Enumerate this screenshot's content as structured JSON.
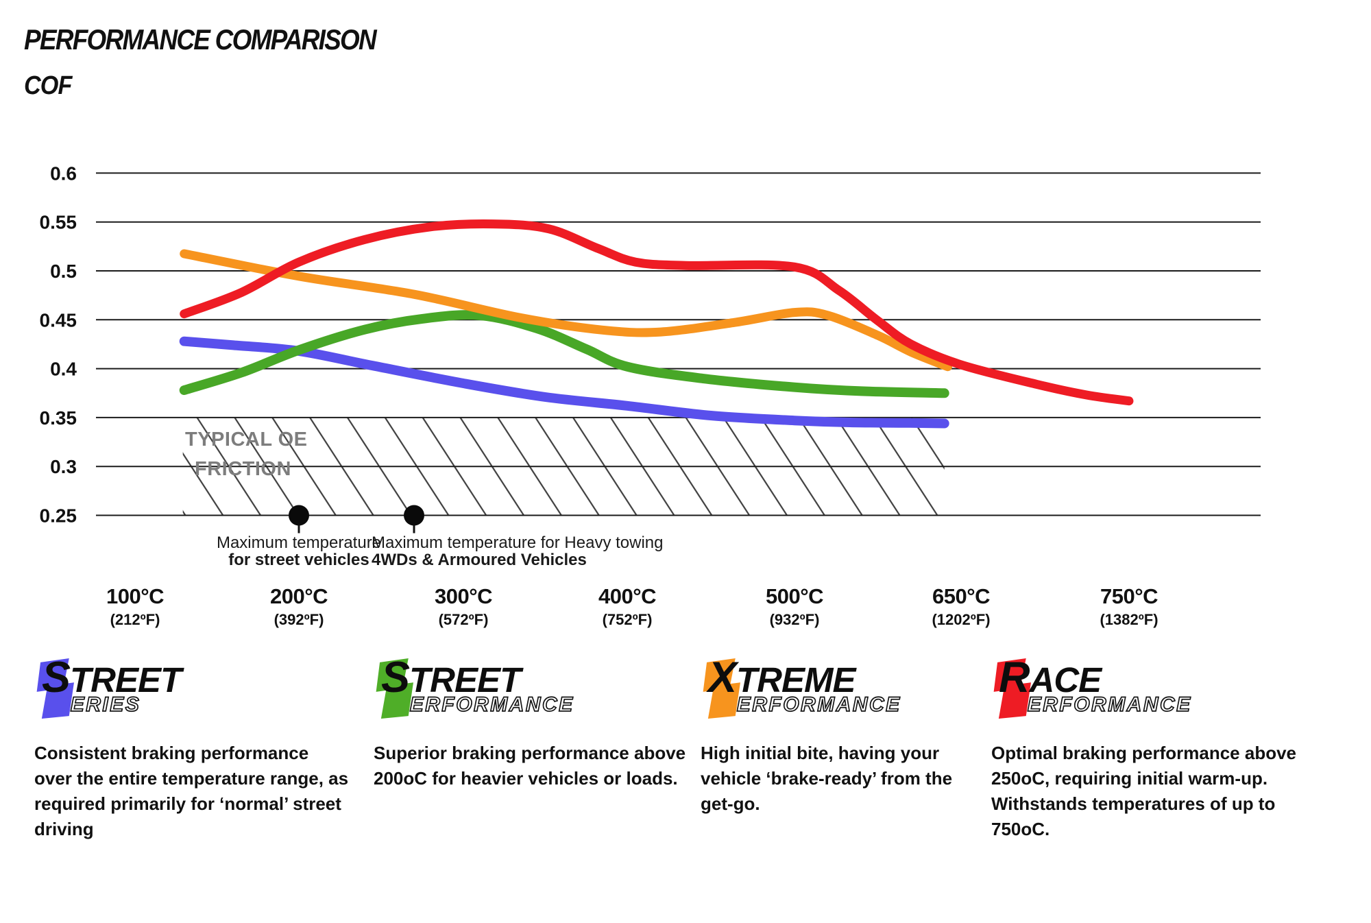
{
  "title": "PERFORMANCE COMPARISON",
  "chart_data": {
    "type": "line",
    "title": "PERFORMANCE COMPARISON",
    "ylabel": "COF",
    "ylim": [
      0.25,
      0.6
    ],
    "grid": true,
    "y_ticks": [
      {
        "value": 0.6,
        "label": "0.6"
      },
      {
        "value": 0.55,
        "label": "0.55"
      },
      {
        "value": 0.5,
        "label": "0.5"
      },
      {
        "value": 0.45,
        "label": "0.45"
      },
      {
        "value": 0.4,
        "label": "0.4"
      },
      {
        "value": 0.35,
        "label": "0.35"
      },
      {
        "value": 0.3,
        "label": "0.3"
      },
      {
        "value": 0.25,
        "label": "0.25"
      }
    ],
    "x_ticks": [
      {
        "temp": 100,
        "label_c": "100°C",
        "label_f": "(212ºF)"
      },
      {
        "temp": 200,
        "label_c": "200°C",
        "label_f": "(392ºF)"
      },
      {
        "temp": 300,
        "label_c": "300°C",
        "label_f": "(572ºF)"
      },
      {
        "temp": 400,
        "label_c": "400°C",
        "label_f": "(752ºF)"
      },
      {
        "temp": 500,
        "label_c": "500°C",
        "label_f": "(932ºF)"
      },
      {
        "temp": 650,
        "label_c": "650°C",
        "label_f": "(1202ºF)"
      },
      {
        "temp": 750,
        "label_c": "750°C",
        "label_f": "(1382ºF)"
      }
    ],
    "series": [
      {
        "name": "Street Series",
        "color": "#5950ec",
        "width": 14,
        "points": [
          [
            130,
            0.428
          ],
          [
            160,
            0.424
          ],
          [
            200,
            0.418
          ],
          [
            245,
            0.403
          ],
          [
            300,
            0.385
          ],
          [
            350,
            0.371
          ],
          [
            400,
            0.362
          ],
          [
            450,
            0.352
          ],
          [
            500,
            0.347
          ],
          [
            550,
            0.345
          ],
          [
            600,
            0.3445
          ],
          [
            635,
            0.344
          ]
        ]
      },
      {
        "name": "Street Performance",
        "color": "#48a727",
        "width": 14,
        "points": [
          [
            130,
            0.378
          ],
          [
            165,
            0.396
          ],
          [
            200,
            0.419
          ],
          [
            240,
            0.44
          ],
          [
            275,
            0.451
          ],
          [
            310,
            0.4545
          ],
          [
            345,
            0.441
          ],
          [
            375,
            0.42
          ],
          [
            400,
            0.402
          ],
          [
            445,
            0.39
          ],
          [
            500,
            0.381
          ],
          [
            560,
            0.377
          ],
          [
            635,
            0.375
          ]
        ]
      },
      {
        "name": "Xtreme Performance",
        "color": "#f7941e",
        "width": 13,
        "points": [
          [
            130,
            0.5175
          ],
          [
            200,
            0.4945
          ],
          [
            270,
            0.476
          ],
          [
            335,
            0.452
          ],
          [
            385,
            0.4395
          ],
          [
            420,
            0.4375
          ],
          [
            465,
            0.4475
          ],
          [
            500,
            0.4575
          ],
          [
            530,
            0.4545
          ],
          [
            575,
            0.434
          ],
          [
            605,
            0.417
          ],
          [
            638,
            0.402
          ]
        ]
      },
      {
        "name": "Race Performance",
        "color": "#ee1c24",
        "width": 13,
        "points": [
          [
            130,
            0.456
          ],
          [
            165,
            0.478
          ],
          [
            200,
            0.509
          ],
          [
            240,
            0.532
          ],
          [
            280,
            0.545
          ],
          [
            318,
            0.548
          ],
          [
            352,
            0.543
          ],
          [
            382,
            0.523
          ],
          [
            405,
            0.509
          ],
          [
            435,
            0.5055
          ],
          [
            500,
            0.504
          ],
          [
            540,
            0.48
          ],
          [
            575,
            0.449
          ],
          [
            605,
            0.425
          ],
          [
            650,
            0.404
          ],
          [
            695,
            0.384
          ],
          [
            725,
            0.373
          ],
          [
            750,
            0.367
          ]
        ]
      }
    ],
    "oe_zone": {
      "label_line1": "TYPICAL OE",
      "label_line2": "FRICTION",
      "cof_range": [
        0.25,
        0.35
      ],
      "temp_range": [
        130,
        635
      ]
    },
    "annotations": [
      {
        "temp": 200,
        "line1": "Maximum temperature",
        "line2": "for street vehicles"
      },
      {
        "temp": 270,
        "line1": "Maximum temperature for Heavy towing",
        "line2": "4WDs & Armoured Vehicles"
      }
    ]
  },
  "legend": [
    {
      "initial": "S",
      "word1_rest": "TREET",
      "sub_initial": "S",
      "word2_rest": "ERIES",
      "color": "#5950ec",
      "description": "Consistent braking performance over the entire temperature range, as required primarily for ‘normal’ street driving"
    },
    {
      "initial": "S",
      "word1_rest": "TREET",
      "sub_initial": "P",
      "word2_rest": "ERFORMANCE",
      "color": "#4fae28",
      "description": "Superior braking performance above 200oC for heavier vehicles or loads."
    },
    {
      "initial": "X",
      "word1_rest": "TREME",
      "sub_initial": "P",
      "word2_rest": "ERFORMANCE",
      "color": "#f7941e",
      "description": "High initial bite, having your vehicle ‘brake-ready’ from the get-go."
    },
    {
      "initial": "R",
      "word1_rest": "ACE",
      "sub_initial": "P",
      "word2_rest": "ERFORMANCE",
      "color": "#ee1c24",
      "description": "Optimal braking performance above 250oC, requiring initial warm-up. Withstands temperatures of up to 750oC."
    }
  ]
}
